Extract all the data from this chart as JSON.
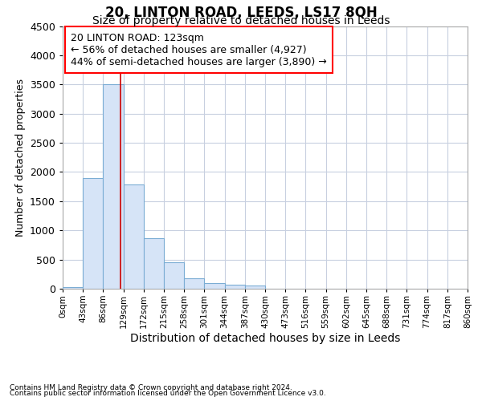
{
  "title": "20, LINTON ROAD, LEEDS, LS17 8QH",
  "subtitle": "Size of property relative to detached houses in Leeds",
  "xlabel": "Distribution of detached houses by size in Leeds",
  "ylabel": "Number of detached properties",
  "footnote1": "Contains HM Land Registry data © Crown copyright and database right 2024.",
  "footnote2": "Contains public sector information licensed under the Open Government Licence v3.0.",
  "annotation_title": "20 LINTON ROAD: 123sqm",
  "annotation_line1": "← 56% of detached houses are smaller (4,927)",
  "annotation_line2": "44% of semi-detached houses are larger (3,890) →",
  "property_size": 123,
  "bin_edges": [
    0,
    43,
    86,
    129,
    172,
    215,
    258,
    301,
    344,
    387,
    430,
    473,
    516,
    559,
    602,
    645,
    688,
    731,
    774,
    817,
    860
  ],
  "bar_values": [
    30,
    1900,
    3500,
    1780,
    870,
    460,
    175,
    90,
    65,
    50,
    0,
    0,
    0,
    0,
    0,
    0,
    0,
    0,
    0,
    0
  ],
  "bar_color": "#d6e4f7",
  "bar_edge_color": "#7badd4",
  "vline_color": "#cc0000",
  "vline_x": 123,
  "ylim": [
    0,
    4500
  ],
  "yticks": [
    0,
    500,
    1000,
    1500,
    2000,
    2500,
    3000,
    3500,
    4000,
    4500
  ],
  "grid_color": "#c8d0e0",
  "bg_color": "#ffffff",
  "title_fontsize": 12,
  "subtitle_fontsize": 10,
  "annotation_fontsize": 9,
  "ylabel_fontsize": 9,
  "xlabel_fontsize": 10
}
